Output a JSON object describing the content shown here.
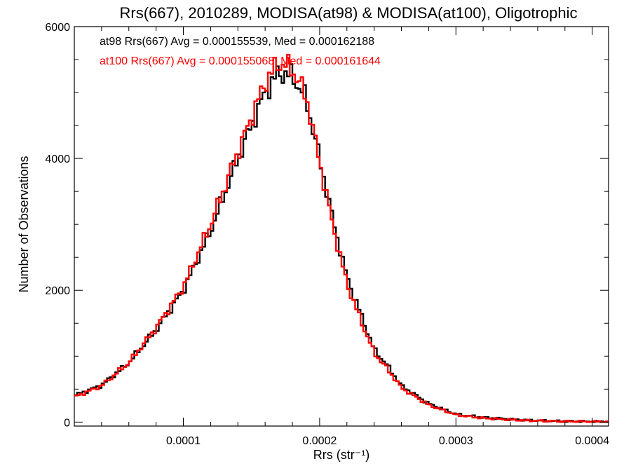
{
  "chart_data": {
    "type": "line",
    "title": "Rrs(667), 2010289, MODISA(at98) & MODISA(at100), Oligotrophic",
    "xlabel": "Rrs (str⁻¹)",
    "ylabel": "Number of Observations",
    "xlim": [
      2e-05,
      0.000412
    ],
    "ylim": [
      -60,
      6000
    ],
    "xticks": [
      0.0001,
      0.0002,
      0.0003,
      0.0004
    ],
    "xtick_labels": [
      "0.0001",
      "0.0002",
      "0.0003",
      "0.0004"
    ],
    "yticks": [
      0,
      2000,
      4000,
      6000
    ],
    "ytick_labels": [
      "0",
      "2000",
      "4000",
      "6000"
    ],
    "grid": false,
    "legend_position": "top-left",
    "series": [
      {
        "name": "at98",
        "label": "at98 Rrs(667) Avg = 0.000155539, Med = 0.000162188",
        "color": "#000000",
        "x": [
          2e-05,
          4e-05,
          6e-05,
          8e-05,
          0.0001,
          0.00012,
          0.00014,
          0.00016,
          0.00017,
          0.00018,
          0.00019,
          0.0002,
          0.00021,
          0.00022,
          0.00023,
          0.00024,
          0.00025,
          0.00026,
          0.00028,
          0.0003,
          0.00032,
          0.00035,
          0.00038,
          0.000412
        ],
        "y": [
          400,
          560,
          900,
          1400,
          2000,
          2900,
          4000,
          5000,
          5300,
          5250,
          4900,
          4000,
          3050,
          2200,
          1650,
          1100,
          850,
          550,
          280,
          120,
          70,
          30,
          12,
          5
        ]
      },
      {
        "name": "at100",
        "label": "at100 Rrs(667) Avg = 0.000155068, Med = 0.000161644",
        "color": "#ff0000",
        "x": [
          2e-05,
          4e-05,
          6e-05,
          8e-05,
          0.0001,
          0.00012,
          0.00014,
          0.00016,
          0.00017,
          0.00018,
          0.00019,
          0.0002,
          0.00021,
          0.00022,
          0.00023,
          0.00024,
          0.00025,
          0.00026,
          0.00028,
          0.0003,
          0.00032,
          0.00035,
          0.00038,
          0.000412
        ],
        "y": [
          380,
          550,
          900,
          1430,
          2050,
          3000,
          4100,
          5150,
          5450,
          5350,
          4950,
          3950,
          2950,
          2100,
          1550,
          1050,
          800,
          520,
          260,
          110,
          60,
          25,
          10,
          5
        ]
      }
    ]
  }
}
